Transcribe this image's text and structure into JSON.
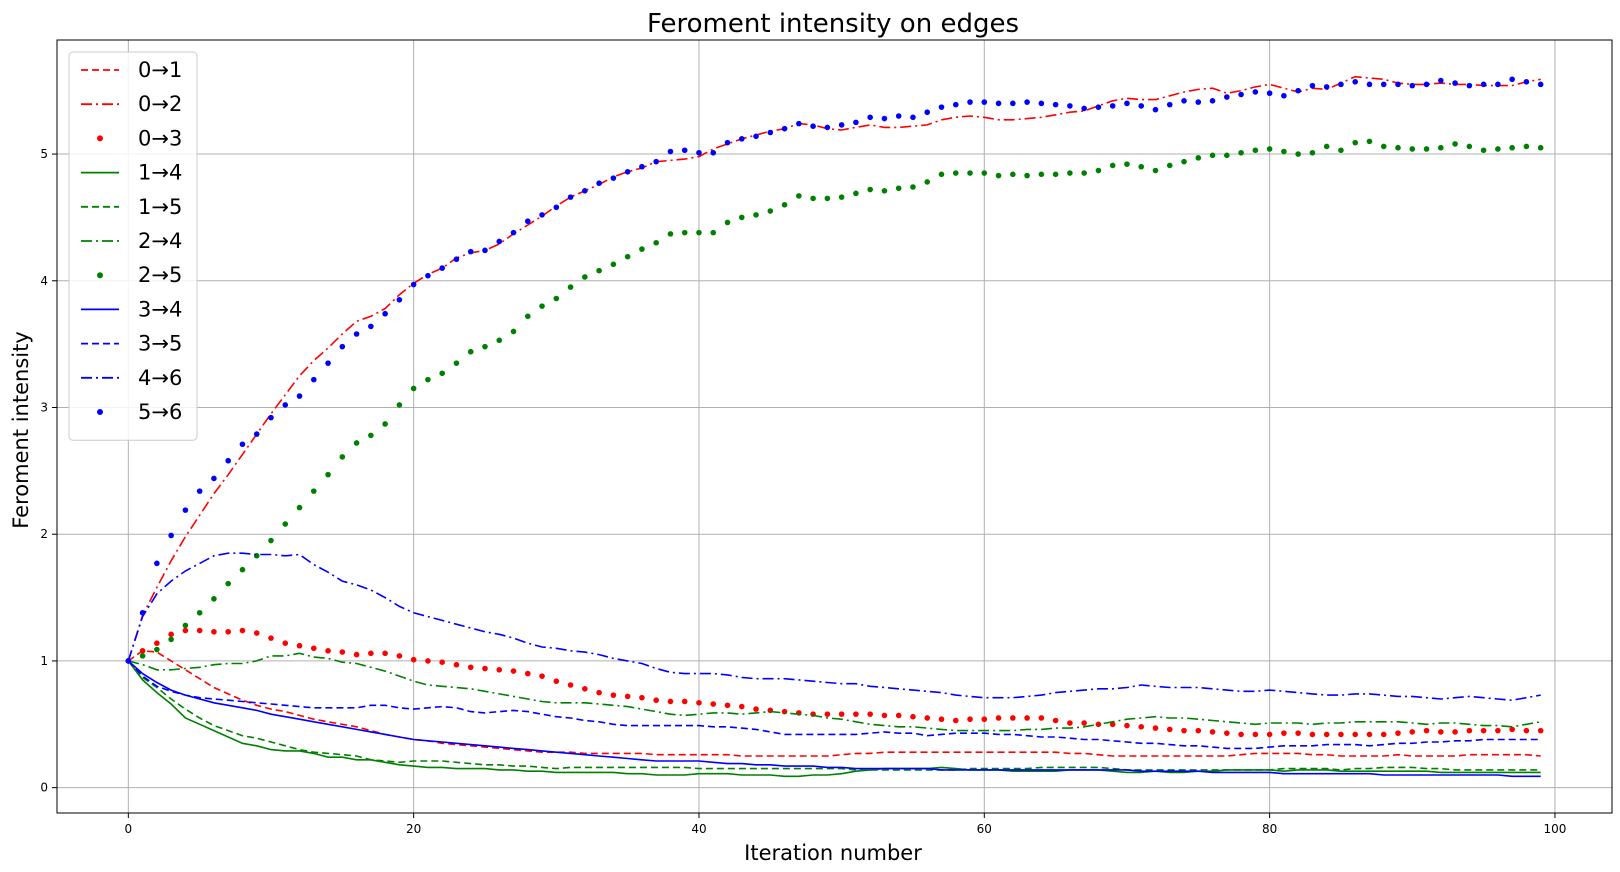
{
  "chart_data": {
    "type": "line",
    "title": "Feroment intensity on edges",
    "xlabel": "Iteration number",
    "ylabel": "Feroment intensity",
    "xlim": [
      -5,
      104
    ],
    "ylim": [
      -0.2,
      5.9
    ],
    "xticks": [
      0,
      20,
      40,
      60,
      80,
      100
    ],
    "yticks": [
      0,
      1,
      2,
      3,
      4,
      5
    ],
    "grid": true,
    "legend_position": "upper-left",
    "x_start": 0,
    "series": [
      {
        "name": "0→1",
        "color": "#ff0000",
        "style": "dashed",
        "values": [
          1,
          1.08,
          1.07,
          1,
          0.93,
          0.86,
          0.79,
          0.74,
          0.69,
          0.65,
          0.62,
          0.6,
          0.57,
          0.54,
          0.52,
          0.5,
          0.48,
          0.45,
          0.42,
          0.4,
          0.38,
          0.37,
          0.35,
          0.34,
          0.33,
          0.32,
          0.31,
          0.3,
          0.29,
          0.28,
          0.28,
          0.28,
          0.27,
          0.27,
          0.27,
          0.27,
          0.27,
          0.26,
          0.26,
          0.26,
          0.26,
          0.26,
          0.26,
          0.25,
          0.25,
          0.25,
          0.25,
          0.25,
          0.25,
          0.25,
          0.26,
          0.27,
          0.27,
          0.28,
          0.28,
          0.28,
          0.28,
          0.28,
          0.28,
          0.28,
          0.28,
          0.28,
          0.28,
          0.28,
          0.28,
          0.28,
          0.27,
          0.27,
          0.26,
          0.25,
          0.25,
          0.25,
          0.25,
          0.25,
          0.25,
          0.25,
          0.25,
          0.25,
          0.26,
          0.27,
          0.27,
          0.27,
          0.27,
          0.26,
          0.26,
          0.25,
          0.25,
          0.25,
          0.25,
          0.26,
          0.25,
          0.25,
          0.25,
          0.25,
          0.26,
          0.26,
          0.26,
          0.26,
          0.26,
          0.25
        ]
      },
      {
        "name": "0→2",
        "color": "#ff0000",
        "style": "dashdot",
        "values": [
          1,
          1.36,
          1.58,
          1.79,
          1.98,
          2.15,
          2.32,
          2.47,
          2.63,
          2.79,
          2.95,
          3.1,
          3.25,
          3.37,
          3.47,
          3.58,
          3.68,
          3.72,
          3.78,
          3.89,
          3.98,
          4.05,
          4.1,
          4.18,
          4.22,
          4.24,
          4.29,
          4.37,
          4.44,
          4.51,
          4.59,
          4.66,
          4.71,
          4.76,
          4.82,
          4.86,
          4.89,
          4.94,
          4.95,
          4.96,
          4.98,
          5.04,
          5.08,
          5.12,
          5.15,
          5.18,
          5.2,
          5.24,
          5.23,
          5.2,
          5.19,
          5.21,
          5.23,
          5.21,
          5.21,
          5.22,
          5.23,
          5.27,
          5.29,
          5.3,
          5.29,
          5.27,
          5.27,
          5.28,
          5.29,
          5.31,
          5.33,
          5.34,
          5.38,
          5.42,
          5.44,
          5.43,
          5.43,
          5.46,
          5.49,
          5.51,
          5.52,
          5.48,
          5.5,
          5.53,
          5.55,
          5.52,
          5.49,
          5.52,
          5.51,
          5.56,
          5.61,
          5.6,
          5.59,
          5.56,
          5.55,
          5.55,
          5.56,
          5.55,
          5.55,
          5.54,
          5.54,
          5.54,
          5.57,
          5.59
        ]
      },
      {
        "name": "0→3",
        "color": "#ff0000",
        "style": "dotted",
        "values": [
          1,
          1.08,
          1.14,
          1.21,
          1.24,
          1.24,
          1.23,
          1.23,
          1.24,
          1.22,
          1.18,
          1.14,
          1.12,
          1.1,
          1.08,
          1.07,
          1.05,
          1.06,
          1.06,
          1.04,
          1.01,
          1,
          0.99,
          0.97,
          0.95,
          0.94,
          0.93,
          0.92,
          0.9,
          0.88,
          0.84,
          0.81,
          0.78,
          0.75,
          0.73,
          0.72,
          0.71,
          0.69,
          0.68,
          0.68,
          0.67,
          0.66,
          0.65,
          0.64,
          0.62,
          0.61,
          0.6,
          0.59,
          0.58,
          0.58,
          0.58,
          0.58,
          0.58,
          0.57,
          0.57,
          0.56,
          0.55,
          0.54,
          0.53,
          0.54,
          0.54,
          0.55,
          0.55,
          0.55,
          0.55,
          0.53,
          0.51,
          0.51,
          0.5,
          0.5,
          0.49,
          0.48,
          0.47,
          0.46,
          0.45,
          0.45,
          0.44,
          0.43,
          0.42,
          0.42,
          0.42,
          0.43,
          0.43,
          0.42,
          0.42,
          0.42,
          0.42,
          0.42,
          0.42,
          0.43,
          0.44,
          0.45,
          0.44,
          0.44,
          0.45,
          0.45,
          0.45,
          0.46,
          0.45,
          0.45
        ]
      },
      {
        "name": "1→4",
        "color": "#008000",
        "style": "solid",
        "values": [
          1,
          0.85,
          0.75,
          0.66,
          0.55,
          0.5,
          0.45,
          0.4,
          0.35,
          0.33,
          0.3,
          0.29,
          0.29,
          0.27,
          0.24,
          0.24,
          0.22,
          0.22,
          0.2,
          0.18,
          0.17,
          0.16,
          0.16,
          0.15,
          0.15,
          0.15,
          0.14,
          0.14,
          0.13,
          0.13,
          0.12,
          0.12,
          0.12,
          0.12,
          0.12,
          0.11,
          0.11,
          0.1,
          0.1,
          0.1,
          0.11,
          0.11,
          0.11,
          0.1,
          0.1,
          0.1,
          0.09,
          0.09,
          0.1,
          0.1,
          0.11,
          0.13,
          0.14,
          0.15,
          0.15,
          0.15,
          0.15,
          0.16,
          0.15,
          0.14,
          0.14,
          0.14,
          0.13,
          0.13,
          0.13,
          0.13,
          0.14,
          0.14,
          0.14,
          0.13,
          0.12,
          0.12,
          0.13,
          0.12,
          0.12,
          0.13,
          0.13,
          0.14,
          0.14,
          0.14,
          0.14,
          0.13,
          0.14,
          0.14,
          0.14,
          0.13,
          0.13,
          0.13,
          0.13,
          0.13,
          0.13,
          0.13,
          0.12,
          0.12,
          0.12,
          0.12,
          0.12,
          0.12,
          0.12,
          0.12
        ]
      },
      {
        "name": "1→5",
        "color": "#008000",
        "style": "dashed",
        "values": [
          1,
          0.87,
          0.79,
          0.7,
          0.62,
          0.55,
          0.49,
          0.45,
          0.41,
          0.39,
          0.36,
          0.33,
          0.3,
          0.28,
          0.27,
          0.26,
          0.25,
          0.22,
          0.21,
          0.2,
          0.21,
          0.21,
          0.21,
          0.2,
          0.19,
          0.18,
          0.18,
          0.17,
          0.17,
          0.16,
          0.15,
          0.16,
          0.16,
          0.16,
          0.16,
          0.16,
          0.16,
          0.16,
          0.16,
          0.16,
          0.15,
          0.15,
          0.15,
          0.15,
          0.15,
          0.15,
          0.15,
          0.15,
          0.15,
          0.15,
          0.15,
          0.14,
          0.14,
          0.14,
          0.14,
          0.14,
          0.14,
          0.14,
          0.14,
          0.15,
          0.15,
          0.15,
          0.15,
          0.15,
          0.16,
          0.16,
          0.16,
          0.16,
          0.16,
          0.15,
          0.14,
          0.14,
          0.14,
          0.14,
          0.14,
          0.14,
          0.14,
          0.14,
          0.14,
          0.14,
          0.14,
          0.15,
          0.15,
          0.15,
          0.15,
          0.14,
          0.15,
          0.15,
          0.16,
          0.16,
          0.16,
          0.15,
          0.15,
          0.14,
          0.14,
          0.14,
          0.14,
          0.14,
          0.14,
          0.14
        ]
      },
      {
        "name": "2→4",
        "color": "#008000",
        "style": "dashdot",
        "values": [
          1,
          0.97,
          0.93,
          0.93,
          0.94,
          0.95,
          0.97,
          0.98,
          0.98,
          1,
          1.04,
          1.04,
          1.06,
          1.03,
          1.02,
          0.99,
          0.98,
          0.95,
          0.92,
          0.88,
          0.84,
          0.81,
          0.8,
          0.79,
          0.78,
          0.76,
          0.74,
          0.72,
          0.7,
          0.68,
          0.67,
          0.67,
          0.67,
          0.66,
          0.65,
          0.64,
          0.62,
          0.6,
          0.58,
          0.57,
          0.58,
          0.59,
          0.59,
          0.58,
          0.59,
          0.6,
          0.59,
          0.58,
          0.57,
          0.55,
          0.54,
          0.52,
          0.5,
          0.49,
          0.48,
          0.48,
          0.47,
          0.46,
          0.45,
          0.45,
          0.45,
          0.45,
          0.45,
          0.46,
          0.46,
          0.47,
          0.47,
          0.48,
          0.5,
          0.52,
          0.54,
          0.55,
          0.56,
          0.55,
          0.55,
          0.54,
          0.53,
          0.52,
          0.51,
          0.5,
          0.51,
          0.51,
          0.51,
          0.5,
          0.51,
          0.51,
          0.52,
          0.52,
          0.52,
          0.52,
          0.51,
          0.5,
          0.51,
          0.51,
          0.5,
          0.49,
          0.49,
          0.48,
          0.5,
          0.52
        ]
      },
      {
        "name": "2→5",
        "color": "#008000",
        "style": "dotted",
        "values": [
          1,
          1.04,
          1.09,
          1.17,
          1.28,
          1.38,
          1.49,
          1.61,
          1.72,
          1.83,
          1.95,
          2.08,
          2.21,
          2.34,
          2.47,
          2.61,
          2.72,
          2.78,
          2.87,
          3.02,
          3.15,
          3.22,
          3.27,
          3.35,
          3.44,
          3.48,
          3.53,
          3.6,
          3.72,
          3.8,
          3.86,
          3.95,
          4.03,
          4.08,
          4.13,
          4.19,
          4.25,
          4.3,
          4.37,
          4.38,
          4.38,
          4.38,
          4.46,
          4.5,
          4.52,
          4.55,
          4.6,
          4.67,
          4.65,
          4.65,
          4.66,
          4.69,
          4.72,
          4.71,
          4.73,
          4.74,
          4.78,
          4.84,
          4.85,
          4.85,
          4.85,
          4.83,
          4.84,
          4.83,
          4.84,
          4.84,
          4.85,
          4.85,
          4.87,
          4.91,
          4.92,
          4.9,
          4.87,
          4.91,
          4.94,
          4.97,
          4.99,
          4.99,
          5.01,
          5.03,
          5.04,
          5.02,
          5.0,
          5.01,
          5.06,
          5.03,
          5.09,
          5.1,
          5.06,
          5.05,
          5.04,
          5.04,
          5.05,
          5.08,
          5.06,
          5.03,
          5.04,
          5.05,
          5.06,
          5.05
        ]
      },
      {
        "name": "3→4",
        "color": "#0000ff",
        "style": "solid",
        "values": [
          1,
          0.9,
          0.83,
          0.77,
          0.73,
          0.7,
          0.67,
          0.65,
          0.63,
          0.61,
          0.58,
          0.56,
          0.54,
          0.52,
          0.5,
          0.48,
          0.46,
          0.44,
          0.42,
          0.4,
          0.38,
          0.37,
          0.36,
          0.35,
          0.34,
          0.33,
          0.32,
          0.31,
          0.3,
          0.29,
          0.28,
          0.27,
          0.26,
          0.25,
          0.24,
          0.23,
          0.22,
          0.21,
          0.21,
          0.21,
          0.21,
          0.2,
          0.19,
          0.19,
          0.18,
          0.18,
          0.17,
          0.17,
          0.17,
          0.16,
          0.16,
          0.15,
          0.15,
          0.15,
          0.15,
          0.15,
          0.15,
          0.14,
          0.14,
          0.14,
          0.14,
          0.14,
          0.14,
          0.14,
          0.14,
          0.14,
          0.14,
          0.14,
          0.14,
          0.14,
          0.14,
          0.13,
          0.13,
          0.13,
          0.13,
          0.13,
          0.12,
          0.12,
          0.12,
          0.12,
          0.12,
          0.11,
          0.11,
          0.11,
          0.11,
          0.11,
          0.11,
          0.11,
          0.1,
          0.1,
          0.1,
          0.1,
          0.1,
          0.1,
          0.1,
          0.1,
          0.1,
          0.09,
          0.09,
          0.09
        ]
      },
      {
        "name": "3→5",
        "color": "#0000ff",
        "style": "dashed",
        "values": [
          1,
          0.88,
          0.8,
          0.76,
          0.73,
          0.71,
          0.7,
          0.69,
          0.68,
          0.67,
          0.66,
          0.65,
          0.64,
          0.63,
          0.63,
          0.63,
          0.63,
          0.65,
          0.65,
          0.63,
          0.62,
          0.63,
          0.64,
          0.63,
          0.6,
          0.59,
          0.6,
          0.61,
          0.6,
          0.58,
          0.56,
          0.55,
          0.53,
          0.52,
          0.5,
          0.49,
          0.49,
          0.49,
          0.49,
          0.49,
          0.49,
          0.48,
          0.48,
          0.47,
          0.46,
          0.44,
          0.42,
          0.42,
          0.42,
          0.42,
          0.42,
          0.42,
          0.43,
          0.44,
          0.43,
          0.43,
          0.41,
          0.42,
          0.43,
          0.43,
          0.43,
          0.42,
          0.42,
          0.41,
          0.4,
          0.4,
          0.39,
          0.38,
          0.38,
          0.37,
          0.36,
          0.35,
          0.35,
          0.34,
          0.33,
          0.33,
          0.32,
          0.31,
          0.31,
          0.31,
          0.32,
          0.33,
          0.33,
          0.33,
          0.34,
          0.34,
          0.34,
          0.33,
          0.34,
          0.35,
          0.35,
          0.36,
          0.36,
          0.37,
          0.37,
          0.38,
          0.38,
          0.38,
          0.38,
          0.38
        ]
      },
      {
        "name": "4→6",
        "color": "#0000ff",
        "style": "dashdot",
        "values": [
          1,
          1.35,
          1.53,
          1.63,
          1.71,
          1.77,
          1.83,
          1.85,
          1.85,
          1.84,
          1.84,
          1.83,
          1.84,
          1.76,
          1.7,
          1.63,
          1.6,
          1.56,
          1.5,
          1.43,
          1.38,
          1.35,
          1.32,
          1.29,
          1.26,
          1.23,
          1.21,
          1.18,
          1.14,
          1.11,
          1.1,
          1.08,
          1.07,
          1.05,
          1.02,
          1,
          0.98,
          0.94,
          0.91,
          0.9,
          0.9,
          0.9,
          0.89,
          0.87,
          0.86,
          0.86,
          0.86,
          0.85,
          0.84,
          0.83,
          0.82,
          0.82,
          0.8,
          0.79,
          0.78,
          0.77,
          0.76,
          0.75,
          0.73,
          0.72,
          0.71,
          0.71,
          0.71,
          0.72,
          0.73,
          0.75,
          0.76,
          0.77,
          0.78,
          0.78,
          0.79,
          0.81,
          0.8,
          0.79,
          0.79,
          0.79,
          0.78,
          0.77,
          0.76,
          0.76,
          0.77,
          0.76,
          0.75,
          0.74,
          0.73,
          0.73,
          0.74,
          0.74,
          0.73,
          0.72,
          0.72,
          0.71,
          0.7,
          0.71,
          0.72,
          0.71,
          0.7,
          0.69,
          0.71,
          0.73
        ]
      },
      {
        "name": "5→6",
        "color": "#0000ff",
        "style": "dotted",
        "values": [
          1,
          1.38,
          1.77,
          1.99,
          2.19,
          2.34,
          2.44,
          2.58,
          2.71,
          2.79,
          2.92,
          3.02,
          3.09,
          3.22,
          3.35,
          3.48,
          3.58,
          3.64,
          3.74,
          3.85,
          3.97,
          4.04,
          4.1,
          4.17,
          4.23,
          4.24,
          4.31,
          4.38,
          4.47,
          4.52,
          4.58,
          4.66,
          4.71,
          4.77,
          4.81,
          4.86,
          4.9,
          4.94,
          5.02,
          5.03,
          5.01,
          5.01,
          5.09,
          5.12,
          5.14,
          5.17,
          5.2,
          5.24,
          5.22,
          5.21,
          5.23,
          5.25,
          5.29,
          5.28,
          5.3,
          5.29,
          5.33,
          5.37,
          5.39,
          5.41,
          5.41,
          5.4,
          5.4,
          5.41,
          5.4,
          5.39,
          5.38,
          5.36,
          5.37,
          5.38,
          5.4,
          5.38,
          5.35,
          5.39,
          5.42,
          5.41,
          5.42,
          5.45,
          5.47,
          5.49,
          5.48,
          5.46,
          5.5,
          5.54,
          5.53,
          5.55,
          5.57,
          5.55,
          5.55,
          5.55,
          5.54,
          5.55,
          5.58,
          5.56,
          5.54,
          5.55,
          5.55,
          5.59,
          5.57,
          5.55
        ]
      }
    ]
  }
}
